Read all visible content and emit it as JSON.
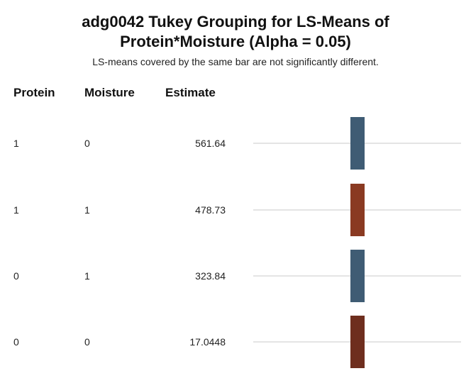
{
  "title_line1": "adg0042 Tukey Grouping for LS-Means of",
  "title_line2": "Protein*Moisture (Alpha = 0.05)",
  "subtitle": "LS-means covered by the same bar are not significantly different.",
  "chart_data": {
    "type": "table",
    "columns": [
      "Protein",
      "Moisture",
      "Estimate"
    ],
    "rows": [
      {
        "protein": "1",
        "moisture": "0",
        "estimate": "561.64"
      },
      {
        "protein": "1",
        "moisture": "1",
        "estimate": "478.73"
      },
      {
        "protein": "0",
        "moisture": "1",
        "estimate": "323.84"
      },
      {
        "protein": "0",
        "moisture": "0",
        "estimate": "17.0448"
      }
    ],
    "grouping_bars": [
      {
        "rows_covered": [
          0
        ],
        "color": "#3F5C74"
      },
      {
        "rows_covered": [
          1
        ],
        "color": "#8A3A22"
      },
      {
        "rows_covered": [
          2
        ],
        "color": "#3F5C74"
      },
      {
        "rows_covered": [
          3
        ],
        "color": "#6E2E1E"
      }
    ],
    "row_line_color": "#C8C8C8"
  }
}
